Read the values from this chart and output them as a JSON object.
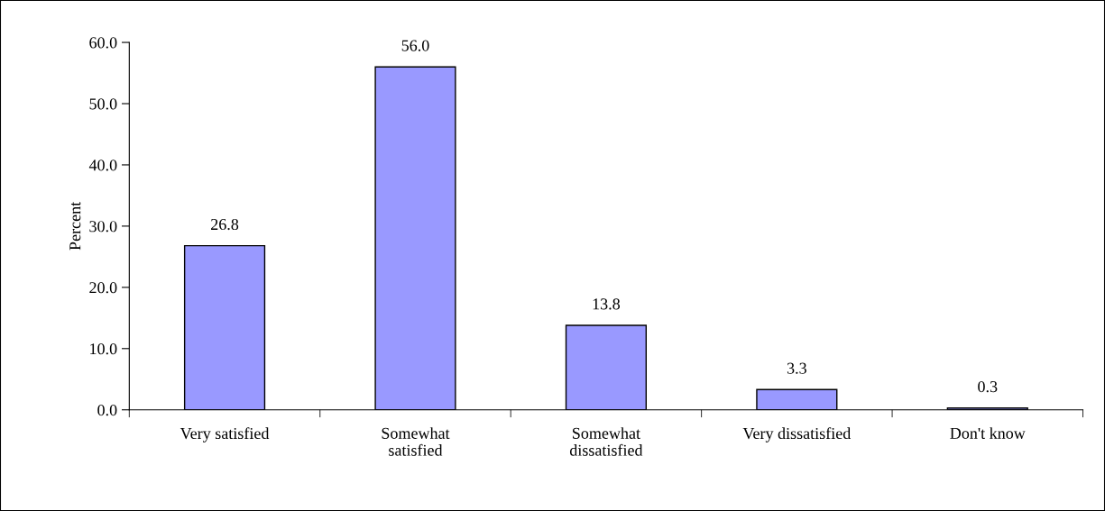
{
  "chart_data": {
    "type": "bar",
    "ylabel": "Percent",
    "categories": [
      "Very satisfied",
      "Somewhat\nsatisfied",
      "Somewhat\ndissatisfied",
      "Very dissatisfied",
      "Don't know"
    ],
    "values": [
      26.8,
      56.0,
      13.8,
      3.3,
      0.3
    ],
    "value_labels": [
      "26.8",
      "56.0",
      "13.8",
      "3.3",
      "0.3"
    ],
    "color": "#9999ff",
    "ylim": [
      0,
      60
    ],
    "yticks": [
      {
        "value": 0,
        "label": "0.0"
      },
      {
        "value": 10,
        "label": "10.0"
      },
      {
        "value": 20,
        "label": "20.0"
      },
      {
        "value": 30,
        "label": "30.0"
      },
      {
        "value": 40,
        "label": "40.0"
      },
      {
        "value": 50,
        "label": "50.0"
      },
      {
        "value": 60,
        "label": "60.0"
      }
    ],
    "grid": false,
    "legend": false
  }
}
